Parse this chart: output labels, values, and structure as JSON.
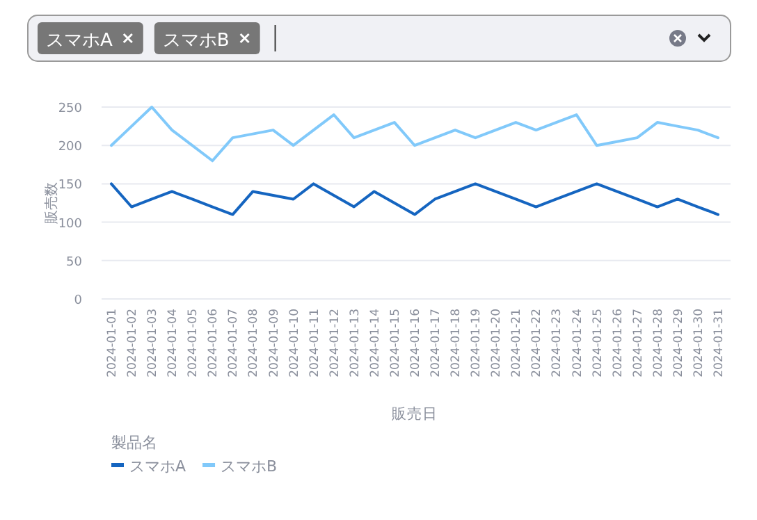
{
  "chart_data": [
    {
      "type": "other",
      "annotations": [
        "スマホA",
        "スマホB"
      ]
    },
    {
      "type": "line",
      "xlabel": "販売日",
      "ylabel": "販売数",
      "legend_title": "製品名",
      "legend": "bottom left",
      "grid": "y",
      "marker": "none",
      "line_style": "solid",
      "categories": [
        "2024-01-01",
        "2024-01-02",
        "2024-01-03",
        "2024-01-04",
        "2024-01-05",
        "2024-01-06",
        "2024-01-07",
        "2024-01-08",
        "2024-01-09",
        "2024-01-10",
        "2024-01-11",
        "2024-01-12",
        "2024-01-13",
        "2024-01-14",
        "2024-01-15",
        "2024-01-16",
        "2024-01-17",
        "2024-01-18",
        "2024-01-19",
        "2024-01-20",
        "2024-01-21",
        "2024-01-22",
        "2024-01-23",
        "2024-01-24",
        "2024-01-25",
        "2024-01-26",
        "2024-01-27",
        "2024-01-28",
        "2024-01-29",
        "2024-01-30",
        "2024-01-31"
      ],
      "ylim": [
        0,
        250
      ],
      "yticks": [
        0,
        50,
        100,
        150,
        200,
        250
      ],
      "series": [
        {
          "name": "スマホA",
          "color": "#1565c0",
          "values": [
            150,
            120,
            130,
            140,
            130,
            120,
            110,
            140,
            135,
            130,
            150,
            135,
            120,
            140,
            125,
            110,
            130,
            140,
            150,
            140,
            130,
            120,
            130,
            140,
            150,
            140,
            130,
            120,
            130,
            120,
            110
          ]
        },
        {
          "name": "スマホB",
          "color": "#81c9fa",
          "values": [
            200,
            225,
            250,
            220,
            200,
            180,
            210,
            215,
            220,
            200,
            220,
            240,
            210,
            220,
            230,
            200,
            210,
            220,
            210,
            220,
            230,
            220,
            230,
            240,
            200,
            205,
            210,
            230,
            225,
            220,
            210
          ]
        }
      ]
    }
  ]
}
